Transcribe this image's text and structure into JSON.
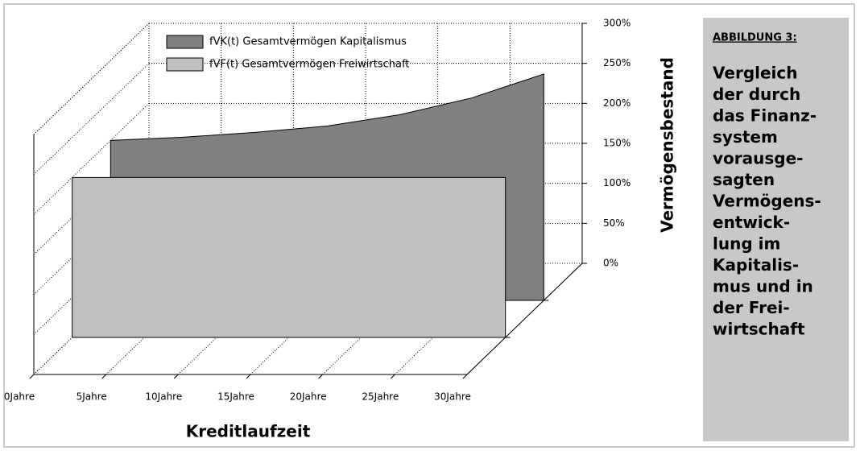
{
  "chart_data": {
    "type": "area3d",
    "categories": [
      "0Jahre",
      "5Jahre",
      "10Jahre",
      "15Jahre",
      "20Jahre",
      "25Jahre",
      "30Jahre"
    ],
    "series": [
      {
        "name": "fVK(t) Gesamtvermögen Kapitalismus",
        "color": "#808080",
        "values": [
          200,
          204,
          210,
          218,
          232,
          253,
          283
        ]
      },
      {
        "name": "fVF(t) Gesamtvermögen Freiwirtschaft",
        "color": "#c0c0c0",
        "values": [
          200,
          200,
          200,
          200,
          200,
          200,
          200
        ]
      }
    ],
    "ylim": [
      0,
      300
    ],
    "yticks": [
      {
        "value": 0,
        "label": "0%"
      },
      {
        "value": 50,
        "label": "50%"
      },
      {
        "value": 100,
        "label": "100%"
      },
      {
        "value": 150,
        "label": "150%"
      },
      {
        "value": 200,
        "label": "200%"
      },
      {
        "value": 250,
        "label": "250%"
      },
      {
        "value": 300,
        "label": "300%"
      }
    ],
    "y_label": "Vermögensbestand",
    "x_label": "Kreditlaufzeit",
    "grid": true,
    "legend": "top"
  },
  "caption": {
    "label": "ABBILDUNG 3:",
    "lines": [
      "Vergleich",
      "der durch",
      "das Finanz-",
      "system",
      "vorausge-",
      "sagten",
      "Vermögens-",
      "entwick-",
      "lung im",
      "Kapitalis-",
      "mus und in",
      "der Frei-",
      "wirtschaft"
    ]
  }
}
